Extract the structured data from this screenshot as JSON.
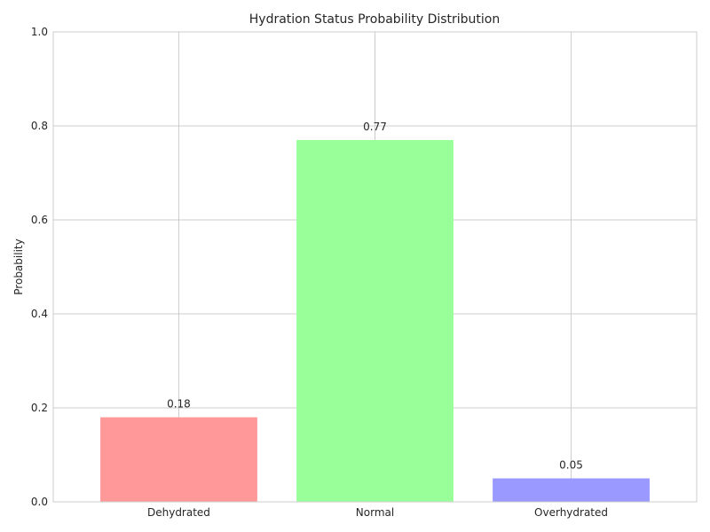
{
  "chart_data": {
    "type": "bar",
    "title": "Hydration Status Probability Distribution",
    "xlabel": "",
    "ylabel": "Probability",
    "categories": [
      "Dehydrated",
      "Normal",
      "Overhydrated"
    ],
    "values": [
      0.18,
      0.77,
      0.05
    ],
    "value_labels": [
      "0.18",
      "0.77",
      "0.05"
    ],
    "bar_colors": [
      "#ff9999",
      "#99ff99",
      "#9999ff"
    ],
    "ylim": [
      0,
      1.0
    ],
    "yticks": [
      0.0,
      0.2,
      0.4,
      0.6,
      0.8,
      1.0
    ],
    "ytick_labels": [
      "0.0",
      "0.2",
      "0.4",
      "0.6",
      "0.8",
      "1.0"
    ],
    "grid": true,
    "grid_color": "#cccccc",
    "axes_edge_color": "#cccccc",
    "text_color": "#262626"
  }
}
